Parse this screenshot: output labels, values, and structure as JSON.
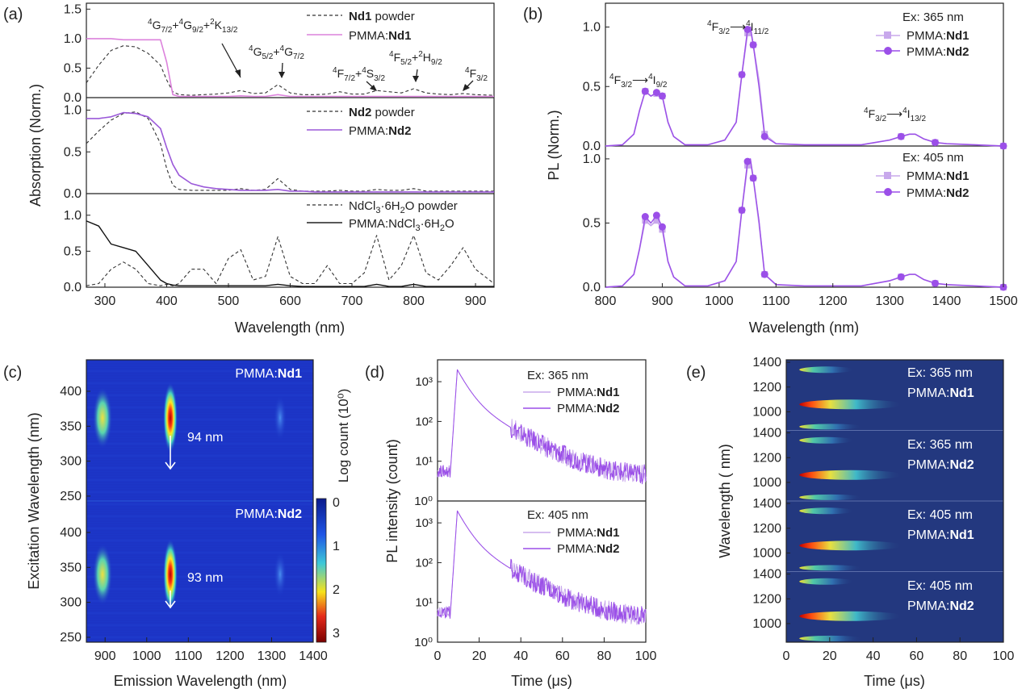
{
  "colors": {
    "axis": "#222222",
    "nd1_powder": "#333333",
    "nd1_pmma": "#dc82dc",
    "nd2_pmma": "#9b59d9",
    "nd2_light": "#c8a8ec",
    "nd2_dark": "#9b4fe8",
    "heat_bg": "#1c36c8",
    "heat_bg2": "#23387f"
  },
  "panel_labels": [
    "(a)",
    "(b)",
    "(c)",
    "(d)",
    "(e)"
  ],
  "chart_data": [
    {
      "id": "a",
      "type": "line",
      "xlabel": "Wavelength (nm)",
      "ylabel": "Absorption (Norm.)",
      "xlim": [
        270,
        930
      ],
      "x_ticks": [
        300,
        400,
        500,
        600,
        700,
        800,
        900
      ],
      "x": [
        270,
        290,
        310,
        330,
        350,
        370,
        390,
        400,
        410,
        420,
        440,
        460,
        480,
        500,
        520,
        540,
        560,
        580,
        600,
        620,
        640,
        660,
        680,
        700,
        720,
        740,
        760,
        780,
        800,
        820,
        840,
        860,
        880,
        900,
        930
      ],
      "subplots": [
        {
          "ylim": [
            0,
            1.6
          ],
          "y_ticks": [
            0.0,
            0.5,
            1.0,
            1.5
          ],
          "series": [
            {
              "name": "Nd1 powder",
              "style": "dashed",
              "values": [
                0.25,
                0.55,
                0.8,
                0.88,
                0.86,
                0.75,
                0.55,
                0.3,
                0.1,
                0.05,
                0.04,
                0.05,
                0.06,
                0.08,
                0.12,
                0.07,
                0.08,
                0.22,
                0.08,
                0.05,
                0.05,
                0.06,
                0.1,
                0.06,
                0.06,
                0.12,
                0.1,
                0.08,
                0.15,
                0.08,
                0.06,
                0.05,
                0.07,
                0.05,
                0.04
              ]
            },
            {
              "name": "PMMA:Nd1",
              "style": "solid",
              "values": [
                1.0,
                1.0,
                1.0,
                0.98,
                0.98,
                0.98,
                0.98,
                0.6,
                0.05,
                0.02,
                0.02,
                0.02,
                0.02,
                0.02,
                0.03,
                0.02,
                0.02,
                0.05,
                0.02,
                0.02,
                0.02,
                0.02,
                0.02,
                0.02,
                0.02,
                0.02,
                0.02,
                0.02,
                0.02,
                0.02,
                0.02,
                0.02,
                0.02,
                0.02,
                0.02
              ]
            }
          ],
          "annotations": [
            "4G7/2+4G9/2+2K13/2",
            "4G5/2+4G7/2",
            "4F7/2+4S3/2",
            "4F5/2+2H9/2",
            "4F3/2"
          ]
        },
        {
          "ylim": [
            0,
            1.15
          ],
          "y_ticks": [
            0.0,
            0.5,
            1.0
          ],
          "series": [
            {
              "name": "Nd2 powder",
              "style": "dashed",
              "values": [
                0.6,
                0.75,
                0.88,
                0.96,
                0.98,
                0.9,
                0.6,
                0.3,
                0.1,
                0.05,
                0.04,
                0.04,
                0.04,
                0.04,
                0.06,
                0.04,
                0.05,
                0.18,
                0.05,
                0.03,
                0.03,
                0.03,
                0.04,
                0.03,
                0.03,
                0.05,
                0.04,
                0.04,
                0.06,
                0.03,
                0.03,
                0.03,
                0.03,
                0.03,
                0.03
              ]
            },
            {
              "name": "PMMA:Nd2",
              "style": "solid",
              "values": [
                0.9,
                0.9,
                0.92,
                0.97,
                0.96,
                0.92,
                0.78,
                0.55,
                0.35,
                0.22,
                0.12,
                0.08,
                0.06,
                0.05,
                0.04,
                0.04,
                0.04,
                0.05,
                0.03,
                0.03,
                0.02,
                0.02,
                0.02,
                0.02,
                0.02,
                0.02,
                0.02,
                0.02,
                0.02,
                0.02,
                0.02,
                0.02,
                0.02,
                0.02,
                0.02
              ]
            }
          ]
        },
        {
          "ylim": [
            0,
            1.3
          ],
          "y_ticks": [
            0.0,
            0.5,
            1.0
          ],
          "series": [
            {
              "name": "NdCl3·6H2O powder",
              "style": "dashed",
              "values": [
                0.02,
                0.05,
                0.25,
                0.35,
                0.25,
                0.05,
                0.02,
                0.04,
                0.02,
                0.05,
                0.25,
                0.25,
                0.05,
                0.4,
                0.52,
                0.1,
                0.15,
                0.7,
                0.15,
                0.05,
                0.05,
                0.3,
                0.05,
                0.05,
                0.2,
                0.72,
                0.1,
                0.3,
                0.72,
                0.2,
                0.1,
                0.3,
                0.55,
                0.25,
                0.05
              ]
            },
            {
              "name": "PMMA:NdCl3·6H2O",
              "style": "solid",
              "values": [
                0.92,
                0.85,
                0.6,
                0.55,
                0.5,
                0.3,
                0.1,
                0.05,
                0.03,
                0.02,
                0.02,
                0.02,
                0.02,
                0.02,
                0.02,
                0.02,
                0.02,
                0.04,
                0.02,
                0.01,
                0.01,
                0.01,
                0.01,
                0.01,
                0.01,
                0.04,
                0.01,
                0.01,
                0.04,
                0.01,
                0.01,
                0.01,
                0.01,
                0.01,
                0.01
              ]
            }
          ]
        }
      ]
    },
    {
      "id": "b",
      "type": "line",
      "xlabel": "Wavelength (nm)",
      "ylabel": "PL (Norm.)",
      "xlim": [
        800,
        1500
      ],
      "x_ticks": [
        800,
        900,
        1000,
        1100,
        1200,
        1300,
        1400,
        1500
      ],
      "x": [
        800,
        830,
        850,
        860,
        870,
        880,
        890,
        900,
        910,
        920,
        940,
        980,
        1010,
        1030,
        1040,
        1050,
        1055,
        1060,
        1070,
        1080,
        1100,
        1150,
        1250,
        1300,
        1320,
        1335,
        1345,
        1360,
        1380,
        1400,
        1450,
        1500
      ],
      "subplots": [
        {
          "ylim": [
            0,
            1.2
          ],
          "y_ticks": [
            0.0,
            0.5,
            1.0
          ],
          "legend_title": "Ex: 365 nm",
          "annotations": [
            "4F3/2→4I9/2",
            "4F3/2→4I11/2",
            "4F3/2→4I13/2"
          ],
          "series": [
            {
              "name": "PMMA:Nd1",
              "values": [
                0.0,
                0.01,
                0.1,
                0.3,
                0.46,
                0.42,
                0.44,
                0.42,
                0.2,
                0.08,
                0.01,
                0.01,
                0.05,
                0.2,
                0.6,
                0.95,
                0.98,
                0.85,
                0.55,
                0.1,
                0.02,
                0.01,
                0.01,
                0.05,
                0.08,
                0.1,
                0.1,
                0.06,
                0.03,
                0.02,
                0.01,
                0.0
              ]
            },
            {
              "name": "PMMA:Nd2",
              "values": [
                0.0,
                0.01,
                0.1,
                0.3,
                0.46,
                0.42,
                0.45,
                0.42,
                0.2,
                0.08,
                0.01,
                0.01,
                0.05,
                0.2,
                0.6,
                0.98,
                1.0,
                0.85,
                0.5,
                0.08,
                0.02,
                0.01,
                0.01,
                0.05,
                0.08,
                0.1,
                0.1,
                0.06,
                0.03,
                0.02,
                0.01,
                0.0
              ]
            }
          ]
        },
        {
          "ylim": [
            0,
            1.1
          ],
          "y_ticks": [
            0.0,
            0.5,
            1.0
          ],
          "legend_title": "Ex: 405 nm",
          "series": [
            {
              "name": "PMMA:Nd1",
              "values": [
                0.0,
                0.01,
                0.1,
                0.3,
                0.52,
                0.48,
                0.52,
                0.45,
                0.2,
                0.08,
                0.01,
                0.01,
                0.05,
                0.2,
                0.6,
                0.95,
                0.98,
                0.85,
                0.5,
                0.1,
                0.02,
                0.01,
                0.01,
                0.05,
                0.08,
                0.1,
                0.1,
                0.06,
                0.03,
                0.02,
                0.01,
                0.0
              ]
            },
            {
              "name": "PMMA:Nd2",
              "values": [
                0.0,
                0.01,
                0.1,
                0.3,
                0.55,
                0.5,
                0.56,
                0.47,
                0.2,
                0.08,
                0.01,
                0.01,
                0.05,
                0.2,
                0.6,
                0.98,
                1.0,
                0.85,
                0.52,
                0.1,
                0.02,
                0.01,
                0.01,
                0.05,
                0.08,
                0.1,
                0.1,
                0.06,
                0.03,
                0.02,
                0.01,
                0.0
              ]
            }
          ]
        }
      ]
    },
    {
      "id": "c",
      "type": "heatmap",
      "xlabel": "Emission Wavelength (nm)",
      "ylabel": "Excitation Wavelength (nm)",
      "x_ticks": [
        900,
        1000,
        1100,
        1200,
        1300,
        1400
      ],
      "y_ticks": [
        250,
        300,
        350,
        400
      ],
      "colorbar_label": "Log count (10⁰)",
      "colorbar_ticks": [
        "0",
        "1",
        "2",
        "3"
      ],
      "subplots": [
        {
          "label": "PMMA:Nd1",
          "annotation": "94 nm"
        },
        {
          "label": "PMMA:Nd2",
          "annotation": "93 nm"
        }
      ]
    },
    {
      "id": "d",
      "type": "line",
      "xlabel": "Time (μs)",
      "ylabel": "PL intensity (count)",
      "xlim": [
        0,
        100
      ],
      "x_ticks": [
        0,
        20,
        40,
        60,
        80,
        100
      ],
      "y_scale": "log",
      "y_ticks": [
        "10⁰",
        "10¹",
        "10²",
        "10³"
      ],
      "subplots": [
        {
          "legend_title": "Ex: 365 nm",
          "series": [
            {
              "name": "PMMA:Nd1"
            },
            {
              "name": "PMMA:Nd2"
            }
          ]
        },
        {
          "legend_title": "Ex: 405 nm",
          "series": [
            {
              "name": "PMMA:Nd1"
            },
            {
              "name": "PMMA:Nd2"
            }
          ]
        }
      ]
    },
    {
      "id": "e",
      "type": "heatmap",
      "xlabel": "Time (μs)",
      "ylabel": "Wavelength ( nm)",
      "x_ticks": [
        0,
        20,
        40,
        60,
        80,
        100
      ],
      "y_ticks": [
        1000,
        1200,
        1400
      ],
      "subplots": [
        {
          "ex": "Ex: 365 nm",
          "label": "PMMA:Nd1"
        },
        {
          "ex": "Ex: 365 nm",
          "label": "PMMA:Nd2"
        },
        {
          "ex": "Ex: 405 nm",
          "label": "PMMA:Nd1"
        },
        {
          "ex": "Ex: 405 nm",
          "label": "PMMA:Nd2"
        }
      ]
    }
  ]
}
